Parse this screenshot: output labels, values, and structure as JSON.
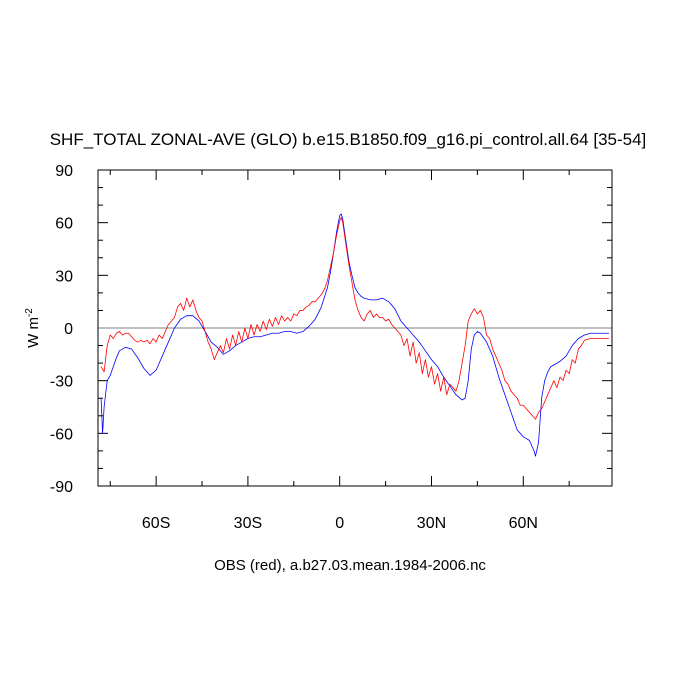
{
  "chart_data": {
    "type": "line",
    "title": "SHF_TOTAL ZONAL-AVE (GLO) b.e15.B1850.f09_g16.pi_control.all.64 [35-54]",
    "xlabel": "OBS (red), a.b27.03.mean.1984-2006.nc",
    "ylabel": "W m",
    "ylabel_superscript": "-2",
    "xlim": [
      -79,
      89
    ],
    "ylim": [
      -90,
      90
    ],
    "x_ticks": [
      -60,
      -30,
      0,
      30,
      60
    ],
    "x_tick_labels": [
      "60S",
      "30S",
      "0",
      "30N",
      "60N"
    ],
    "y_ticks": [
      -90,
      -60,
      -30,
      0,
      30,
      60,
      90
    ],
    "y_tick_labels": [
      "-90",
      "-60",
      "-30",
      "0",
      "30",
      "60",
      "90"
    ],
    "reference_line": 0,
    "grid": false,
    "legend": "none",
    "colors": {
      "model": "#0000ff",
      "obs": "#ff0000",
      "zero_line": "#808080"
    },
    "series": [
      {
        "color": "#0000ff",
        "points": [
          [
            -78,
            -40
          ],
          [
            -77.5,
            -60
          ],
          [
            -77,
            -45
          ],
          [
            -76,
            -30
          ],
          [
            -75,
            -27
          ],
          [
            -74,
            -22
          ],
          [
            -73,
            -17
          ],
          [
            -72,
            -13
          ],
          [
            -70,
            -11
          ],
          [
            -68,
            -12
          ],
          [
            -66,
            -17
          ],
          [
            -64,
            -23
          ],
          [
            -62,
            -27
          ],
          [
            -60,
            -24
          ],
          [
            -58,
            -16
          ],
          [
            -56,
            -8
          ],
          [
            -54,
            0
          ],
          [
            -52,
            5
          ],
          [
            -50,
            7
          ],
          [
            -48,
            7
          ],
          [
            -46,
            4
          ],
          [
            -44,
            -2
          ],
          [
            -42,
            -8
          ],
          [
            -40,
            -11
          ],
          [
            -38,
            -15
          ],
          [
            -36,
            -13
          ],
          [
            -34,
            -10
          ],
          [
            -32,
            -8
          ],
          [
            -30,
            -6
          ],
          [
            -28,
            -5
          ],
          [
            -26,
            -5
          ],
          [
            -24,
            -4
          ],
          [
            -22,
            -3
          ],
          [
            -20,
            -3
          ],
          [
            -18,
            -2
          ],
          [
            -16,
            -2
          ],
          [
            -14,
            -3
          ],
          [
            -12,
            -2
          ],
          [
            -10,
            1
          ],
          [
            -8,
            5
          ],
          [
            -6,
            12
          ],
          [
            -4,
            23
          ],
          [
            -3,
            32
          ],
          [
            -2,
            43
          ],
          [
            -1,
            55
          ],
          [
            0,
            64
          ],
          [
            0.5,
            65
          ],
          [
            1,
            62
          ],
          [
            2,
            50
          ],
          [
            3,
            38
          ],
          [
            4,
            30
          ],
          [
            5,
            23
          ],
          [
            6,
            20
          ],
          [
            7,
            18
          ],
          [
            8,
            17
          ],
          [
            10,
            16
          ],
          [
            12,
            16
          ],
          [
            14,
            17
          ],
          [
            16,
            15
          ],
          [
            18,
            11
          ],
          [
            20,
            4
          ],
          [
            22,
            0
          ],
          [
            24,
            -4
          ],
          [
            26,
            -8
          ],
          [
            28,
            -13
          ],
          [
            30,
            -18
          ],
          [
            32,
            -22
          ],
          [
            34,
            -28
          ],
          [
            36,
            -33
          ],
          [
            38,
            -38
          ],
          [
            40,
            -41
          ],
          [
            41,
            -40
          ],
          [
            42,
            -30
          ],
          [
            43,
            -12
          ],
          [
            44,
            -4
          ],
          [
            45,
            -2
          ],
          [
            46,
            -3
          ],
          [
            48,
            -8
          ],
          [
            50,
            -16
          ],
          [
            52,
            -28
          ],
          [
            54,
            -38
          ],
          [
            56,
            -48
          ],
          [
            58,
            -58
          ],
          [
            60,
            -62
          ],
          [
            62,
            -64
          ],
          [
            63.5,
            -70
          ],
          [
            64,
            -73
          ],
          [
            65,
            -65
          ],
          [
            66,
            -40
          ],
          [
            67,
            -30
          ],
          [
            68,
            -25
          ],
          [
            69,
            -22
          ],
          [
            70,
            -21
          ],
          [
            72,
            -19
          ],
          [
            74,
            -16
          ],
          [
            76,
            -10
          ],
          [
            78,
            -6
          ],
          [
            80,
            -4
          ],
          [
            82,
            -3
          ],
          [
            85,
            -3
          ],
          [
            88,
            -3
          ]
        ]
      },
      {
        "color": "#ff0000",
        "points": [
          [
            -78,
            -22
          ],
          [
            -77,
            -25
          ],
          [
            -76,
            -10
          ],
          [
            -75,
            -4
          ],
          [
            -74,
            -6
          ],
          [
            -73,
            -3
          ],
          [
            -72,
            -2
          ],
          [
            -71,
            -4
          ],
          [
            -70,
            -3
          ],
          [
            -69,
            -3
          ],
          [
            -68,
            -5
          ],
          [
            -67,
            -7
          ],
          [
            -66,
            -8
          ],
          [
            -65,
            -7
          ],
          [
            -64,
            -8
          ],
          [
            -63,
            -7
          ],
          [
            -62,
            -9
          ],
          [
            -61,
            -6
          ],
          [
            -60,
            -8
          ],
          [
            -59,
            -4
          ],
          [
            -58,
            -6
          ],
          [
            -57,
            -2
          ],
          [
            -56,
            2
          ],
          [
            -55,
            4
          ],
          [
            -54,
            6
          ],
          [
            -53,
            12
          ],
          [
            -52,
            14
          ],
          [
            -51,
            10
          ],
          [
            -50,
            17
          ],
          [
            -49,
            12
          ],
          [
            -48,
            16
          ],
          [
            -47,
            10
          ],
          [
            -46,
            6
          ],
          [
            -45,
            4
          ],
          [
            -44,
            -2
          ],
          [
            -43,
            -8
          ],
          [
            -42,
            -12
          ],
          [
            -41,
            -18
          ],
          [
            -40,
            -14
          ],
          [
            -39,
            -10
          ],
          [
            -38,
            -14
          ],
          [
            -37,
            -6
          ],
          [
            -36,
            -12
          ],
          [
            -35,
            -4
          ],
          [
            -34,
            -10
          ],
          [
            -33,
            -2
          ],
          [
            -32,
            -8
          ],
          [
            -31,
            0
          ],
          [
            -30,
            -6
          ],
          [
            -29,
            2
          ],
          [
            -28,
            -4
          ],
          [
            -27,
            2
          ],
          [
            -26,
            -2
          ],
          [
            -25,
            4
          ],
          [
            -24,
            -1
          ],
          [
            -23,
            5
          ],
          [
            -22,
            1
          ],
          [
            -21,
            6
          ],
          [
            -20,
            2
          ],
          [
            -19,
            7
          ],
          [
            -18,
            4
          ],
          [
            -17,
            6
          ],
          [
            -16,
            4
          ],
          [
            -15,
            8
          ],
          [
            -14,
            7
          ],
          [
            -13,
            10
          ],
          [
            -12,
            10
          ],
          [
            -11,
            12
          ],
          [
            -10,
            13
          ],
          [
            -9,
            15
          ],
          [
            -8,
            15
          ],
          [
            -7,
            17
          ],
          [
            -6,
            19
          ],
          [
            -5,
            22
          ],
          [
            -4,
            27
          ],
          [
            -3,
            35
          ],
          [
            -2,
            43
          ],
          [
            -1,
            53
          ],
          [
            0,
            61
          ],
          [
            0.5,
            63
          ],
          [
            1,
            60
          ],
          [
            2,
            48
          ],
          [
            3,
            36
          ],
          [
            4,
            26
          ],
          [
            5,
            16
          ],
          [
            6,
            10
          ],
          [
            7,
            6
          ],
          [
            8,
            4
          ],
          [
            9,
            8
          ],
          [
            10,
            10
          ],
          [
            11,
            6
          ],
          [
            12,
            8
          ],
          [
            13,
            6
          ],
          [
            14,
            6
          ],
          [
            15,
            4
          ],
          [
            16,
            5
          ],
          [
            17,
            2
          ],
          [
            18,
            0
          ],
          [
            19,
            -2
          ],
          [
            20,
            -4
          ],
          [
            21,
            -10
          ],
          [
            22,
            -6
          ],
          [
            23,
            -16
          ],
          [
            24,
            -8
          ],
          [
            25,
            -20
          ],
          [
            26,
            -14
          ],
          [
            27,
            -26
          ],
          [
            28,
            -18
          ],
          [
            29,
            -28
          ],
          [
            30,
            -22
          ],
          [
            31,
            -32
          ],
          [
            32,
            -26
          ],
          [
            33,
            -36
          ],
          [
            34,
            -28
          ],
          [
            35,
            -38
          ],
          [
            36,
            -32
          ],
          [
            37,
            -34
          ],
          [
            38,
            -36
          ],
          [
            39,
            -30
          ],
          [
            40,
            -20
          ],
          [
            41,
            -10
          ],
          [
            42,
            4
          ],
          [
            43,
            8
          ],
          [
            44,
            11
          ],
          [
            45,
            8
          ],
          [
            46,
            10
          ],
          [
            47,
            6
          ],
          [
            48,
            -4
          ],
          [
            49,
            -6
          ],
          [
            50,
            -12
          ],
          [
            51,
            -16
          ],
          [
            52,
            -20
          ],
          [
            53,
            -24
          ],
          [
            54,
            -30
          ],
          [
            55,
            -32
          ],
          [
            56,
            -36
          ],
          [
            57,
            -38
          ],
          [
            58,
            -40
          ],
          [
            59,
            -44
          ],
          [
            60,
            -44
          ],
          [
            61,
            -46
          ],
          [
            62,
            -48
          ],
          [
            63,
            -50
          ],
          [
            64,
            -52
          ],
          [
            65,
            -48
          ],
          [
            66,
            -46
          ],
          [
            67,
            -42
          ],
          [
            68,
            -38
          ],
          [
            69,
            -34
          ],
          [
            70,
            -30
          ],
          [
            71,
            -34
          ],
          [
            72,
            -28
          ],
          [
            73,
            -30
          ],
          [
            74,
            -24
          ],
          [
            75,
            -26
          ],
          [
            76,
            -18
          ],
          [
            77,
            -20
          ],
          [
            78,
            -12
          ],
          [
            79,
            -10
          ],
          [
            80,
            -7
          ],
          [
            82,
            -6
          ],
          [
            85,
            -6
          ],
          [
            88,
            -6
          ]
        ]
      }
    ]
  }
}
